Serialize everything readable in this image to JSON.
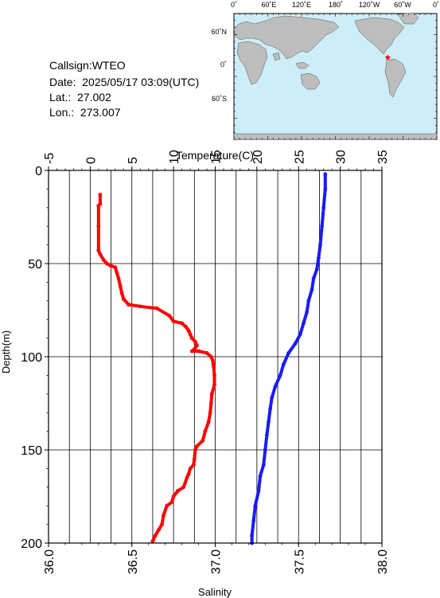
{
  "station": {
    "callsign": "Callsign:WTEO",
    "date": "Date:  2025/05/17 03:09(UTC)",
    "lat": "Lat.:  27.002",
    "lon": "Lon.:  273.007"
  },
  "map": {
    "top_labels": [
      "0˚",
      "60˚E",
      "120˚E",
      "180˚",
      "120˚W",
      "60˚W",
      "0˚"
    ],
    "left_labels": [
      "60˚N",
      "0˚",
      "60˚S"
    ],
    "ocean_color": "#cdeef8",
    "land_color": "#bdbdbd",
    "marker_color": "#ff0000",
    "marker_lon": 273.007,
    "marker_lat": 27.002
  },
  "chart_data": {
    "type": "line",
    "top_axis_label": "Temperature(C)",
    "bottom_axis_label": "Salinity",
    "left_axis_label": "Depth(m)",
    "temperature_range": [
      -5,
      35
    ],
    "temperature_ticks": [
      "-5",
      "0",
      "5",
      "10",
      "15",
      "20",
      "25",
      "30",
      "35"
    ],
    "salinity_range": [
      36.0,
      38.0
    ],
    "salinity_ticks": [
      "36.0",
      "36.5",
      "37.0",
      "37.5",
      "38.0"
    ],
    "depth_range": [
      0,
      200
    ],
    "depth_ticks": [
      "0",
      "50",
      "100",
      "150",
      "200"
    ],
    "series": [
      {
        "color": "#ff0000",
        "axis": "temperature",
        "points": [
          [
            1.2,
            13
          ],
          [
            1.2,
            18
          ],
          [
            1.0,
            19
          ],
          [
            1.0,
            30
          ],
          [
            1.0,
            43
          ],
          [
            1.2,
            45
          ],
          [
            1.6,
            48
          ],
          [
            2.0,
            50
          ],
          [
            2.4,
            51
          ],
          [
            3.0,
            52
          ],
          [
            3.2,
            55
          ],
          [
            3.4,
            58
          ],
          [
            3.6,
            62
          ],
          [
            3.8,
            66
          ],
          [
            4.0,
            69
          ],
          [
            4.6,
            72
          ],
          [
            6.0,
            73
          ],
          [
            8.0,
            74
          ],
          [
            9.5,
            78
          ],
          [
            10.0,
            81
          ],
          [
            11.0,
            82
          ],
          [
            11.5,
            84
          ],
          [
            11.8,
            86
          ],
          [
            12.0,
            88
          ],
          [
            12.2,
            90
          ],
          [
            12.6,
            92
          ],
          [
            12.8,
            94
          ],
          [
            12.5,
            96
          ],
          [
            12.2,
            97
          ],
          [
            13.0,
            97
          ],
          [
            14.0,
            98
          ],
          [
            14.5,
            100
          ],
          [
            14.7,
            102
          ],
          [
            14.8,
            105
          ],
          [
            14.9,
            110
          ],
          [
            14.9,
            115
          ],
          [
            14.6,
            120
          ],
          [
            14.5,
            125
          ],
          [
            14.4,
            130
          ],
          [
            14.2,
            135
          ],
          [
            13.8,
            140
          ],
          [
            13.5,
            145
          ],
          [
            12.8,
            148
          ],
          [
            12.6,
            150
          ],
          [
            12.5,
            155
          ],
          [
            12.4,
            158
          ],
          [
            12.0,
            160
          ],
          [
            11.8,
            163
          ],
          [
            11.6,
            165
          ],
          [
            11.2,
            170
          ],
          [
            10.5,
            172
          ],
          [
            10.0,
            175
          ],
          [
            9.8,
            178
          ],
          [
            9.2,
            180
          ],
          [
            8.8,
            185
          ],
          [
            8.6,
            190
          ],
          [
            8.2,
            193
          ],
          [
            7.8,
            196
          ],
          [
            7.5,
            199
          ]
        ]
      },
      {
        "color": "#1a1aff",
        "axis": "salinity",
        "points": [
          [
            37.66,
            2
          ],
          [
            37.66,
            10
          ],
          [
            37.65,
            20
          ],
          [
            37.64,
            30
          ],
          [
            37.63,
            40
          ],
          [
            37.62,
            47
          ],
          [
            37.61,
            53
          ],
          [
            37.59,
            58
          ],
          [
            37.58,
            64
          ],
          [
            37.56,
            70
          ],
          [
            37.55,
            76
          ],
          [
            37.53,
            82
          ],
          [
            37.51,
            88
          ],
          [
            37.48,
            93
          ],
          [
            37.44,
            98
          ],
          [
            37.41,
            104
          ],
          [
            37.39,
            110
          ],
          [
            37.36,
            116
          ],
          [
            37.34,
            122
          ],
          [
            37.33,
            128
          ],
          [
            37.32,
            135
          ],
          [
            37.31,
            142
          ],
          [
            37.3,
            150
          ],
          [
            37.29,
            158
          ],
          [
            37.27,
            164
          ],
          [
            37.26,
            172
          ],
          [
            37.24,
            180
          ],
          [
            37.23,
            188
          ],
          [
            37.22,
            196
          ],
          [
            37.22,
            200
          ]
        ]
      }
    ]
  }
}
